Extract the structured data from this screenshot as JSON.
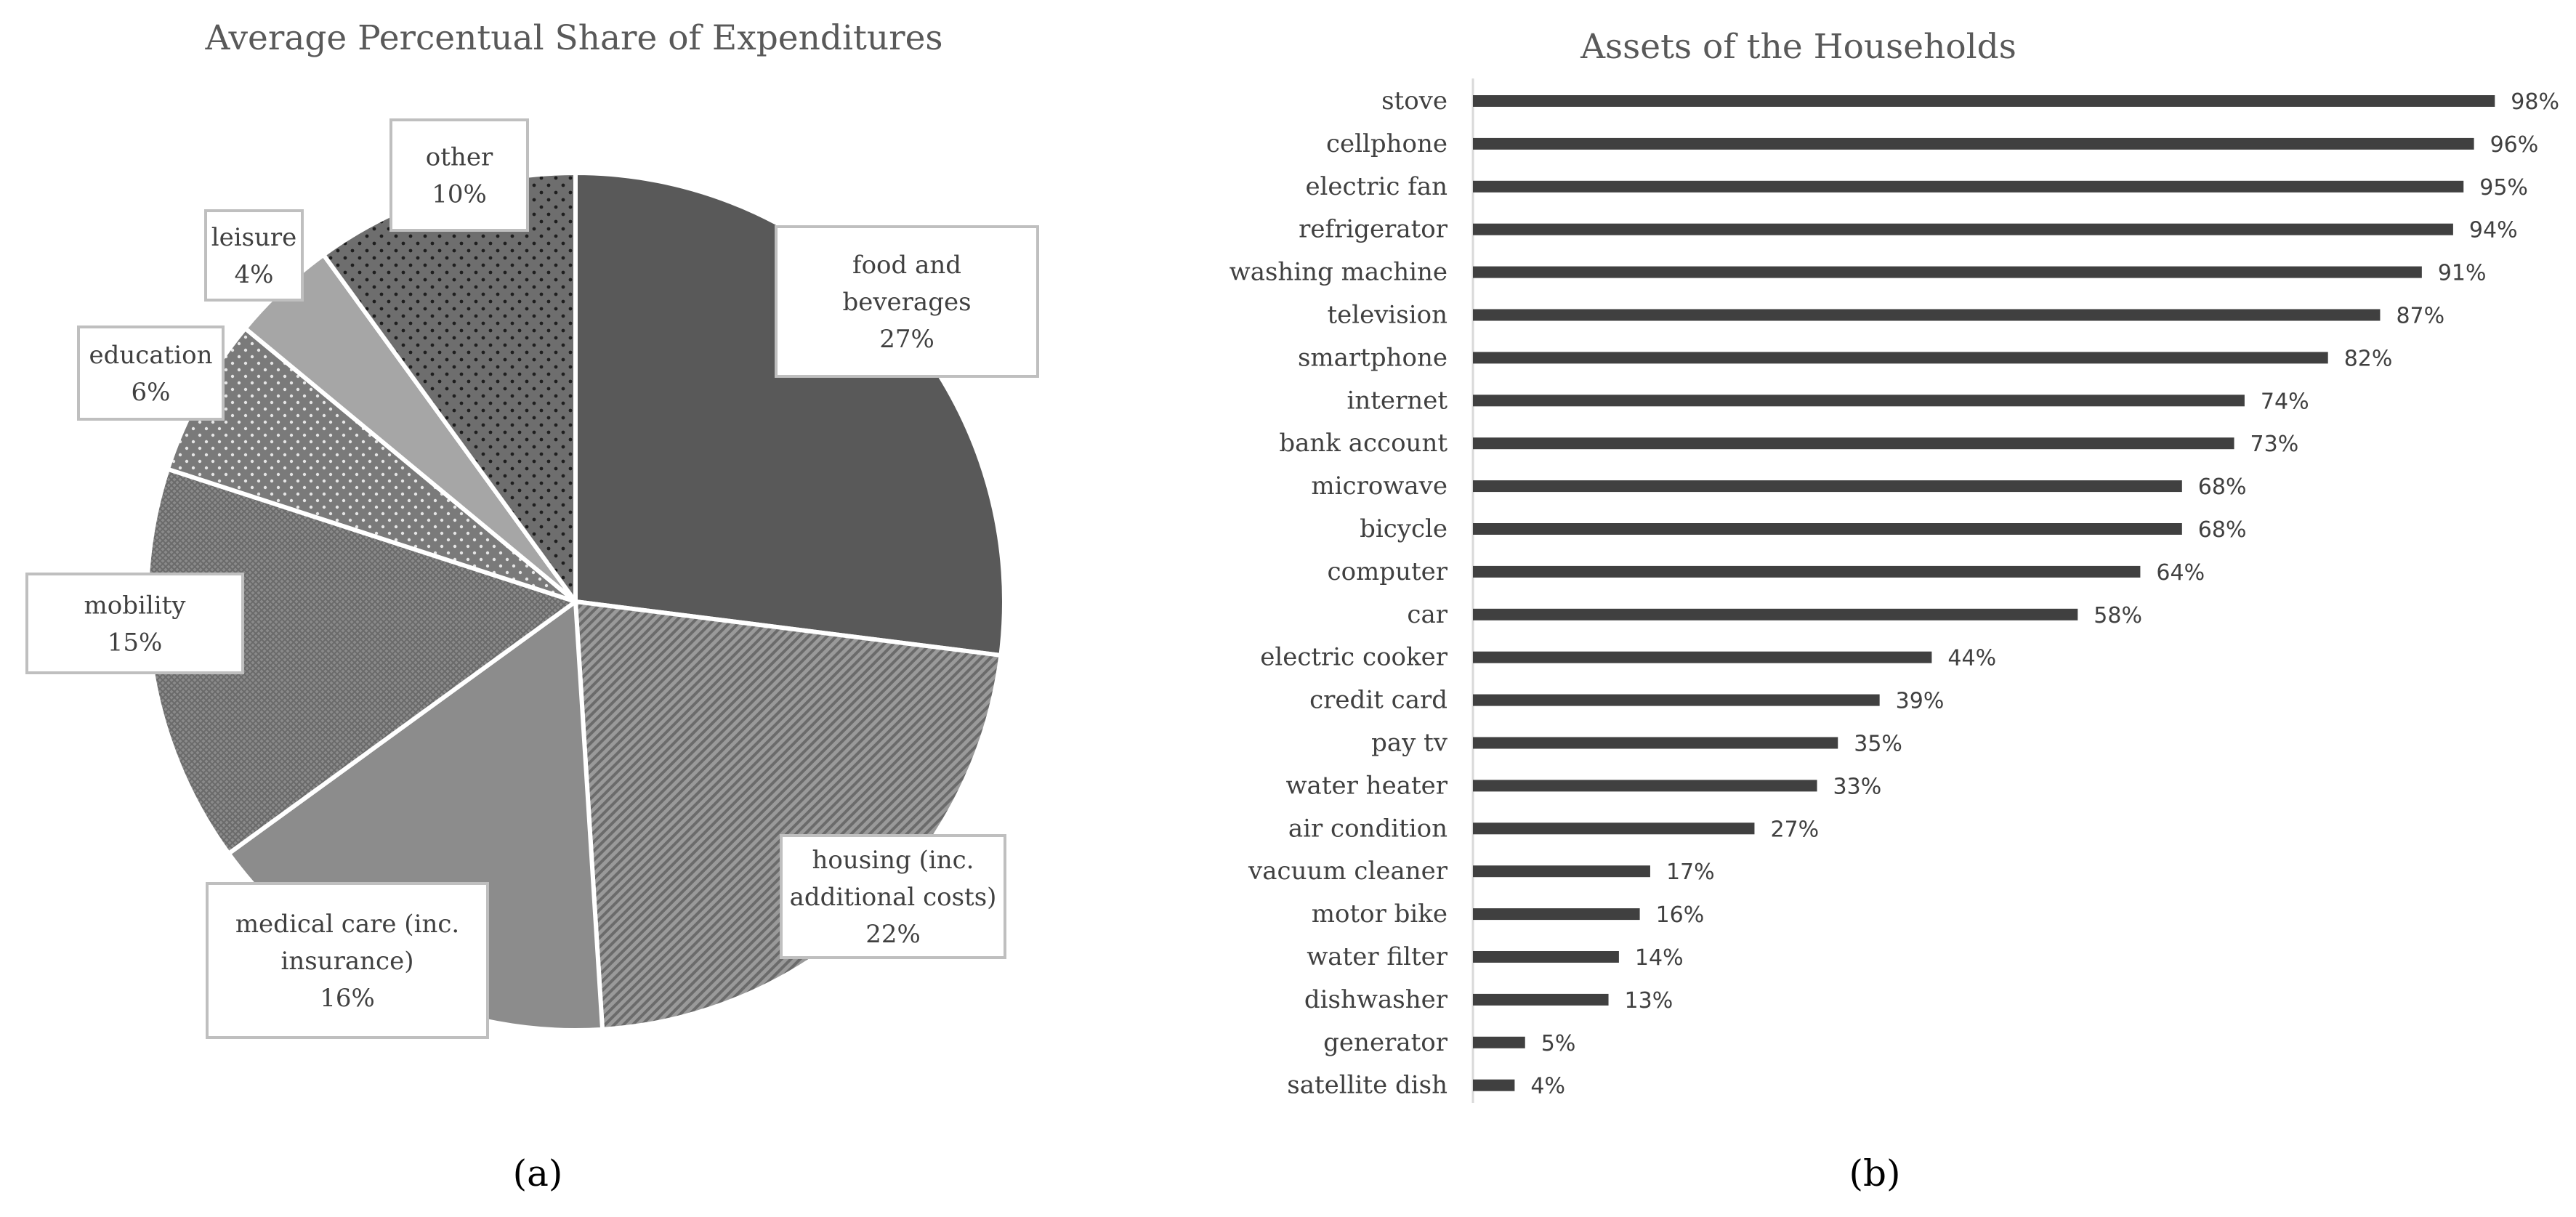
{
  "chart_data": [
    {
      "type": "pie",
      "title": "Average Percentual Share of Expenditures",
      "caption": "(a)",
      "slices": [
        {
          "label_lines": [
            "food and",
            "beverages"
          ],
          "value": 27,
          "value_label": "27%",
          "color": "#595959",
          "pattern": "solid"
        },
        {
          "label_lines": [
            "housing (inc.",
            "additional costs)"
          ],
          "value": 22,
          "value_label": "22%",
          "color": "#7f7f7f",
          "pattern": "diagonal-hatch"
        },
        {
          "label_lines": [
            "medical care (inc.",
            "insurance)"
          ],
          "value": 16,
          "value_label": "16%",
          "color": "#8c8c8c",
          "pattern": "solid"
        },
        {
          "label_lines": [
            "mobility"
          ],
          "value": 15,
          "value_label": "15%",
          "color": "#808080",
          "pattern": "cross-hatch"
        },
        {
          "label_lines": [
            "education"
          ],
          "value": 6,
          "value_label": "6%",
          "color": "#767676",
          "pattern": "dotted"
        },
        {
          "label_lines": [
            "leisure"
          ],
          "value": 4,
          "value_label": "4%",
          "color": "#a6a6a6",
          "pattern": "solid"
        },
        {
          "label_lines": [
            "other"
          ],
          "value": 10,
          "value_label": "10%",
          "color": "#737373",
          "pattern": "dotted-dense"
        }
      ]
    },
    {
      "type": "bar",
      "orientation": "horizontal",
      "title": "Assets of the Households",
      "caption": "(b)",
      "bar_color": "#404040",
      "xlim": [
        0,
        100
      ],
      "categories": [
        "stove",
        "cellphone",
        "electric fan",
        "refrigerator",
        "washing machine",
        "television",
        "smartphone",
        "internet",
        "bank account",
        "microwave",
        "bicycle",
        "computer",
        "car",
        "electric cooker",
        "credit card",
        "pay tv",
        "water heater",
        "air condition",
        "vacuum cleaner",
        "motor bike",
        "water filter",
        "dishwasher",
        "generator",
        "satellite dish"
      ],
      "values": [
        98,
        96,
        95,
        94,
        91,
        87,
        82,
        74,
        73,
        68,
        68,
        64,
        58,
        44,
        39,
        35,
        33,
        27,
        17,
        16,
        14,
        13,
        5,
        4
      ],
      "value_labels": [
        "98%",
        "96%",
        "95%",
        "94%",
        "91%",
        "87%",
        "82%",
        "74%",
        "73%",
        "68%",
        "68%",
        "64%",
        "58%",
        "44%",
        "39%",
        "35%",
        "33%",
        "27%",
        "17%",
        "16%",
        "14%",
        "13%",
        "5%",
        "4%"
      ]
    }
  ]
}
